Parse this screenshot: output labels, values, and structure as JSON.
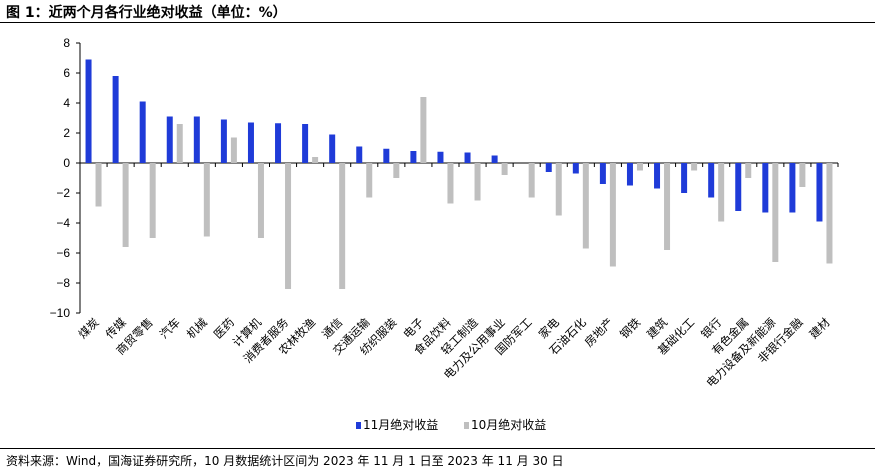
{
  "figure": {
    "title": "图 1：近两个月各行业绝对收益（单位：%）",
    "source": "资料来源：Wind，国海证券研究所，10 月数据统计区间为 2023 年 11 月 1 日至 2023 年 11 月 30 日"
  },
  "chart_data": {
    "type": "bar",
    "title": "",
    "xlabel": "",
    "ylabel": "",
    "ylim": [
      -10,
      8
    ],
    "yticks": [
      -10,
      -8,
      -6,
      -4,
      -2,
      0,
      2,
      4,
      6,
      8
    ],
    "grid": false,
    "legend_position": "bottom",
    "categories": [
      "煤炭",
      "传媒",
      "商贸零售",
      "汽车",
      "机械",
      "医药",
      "计算机",
      "消费者服务",
      "农林牧渔",
      "通信",
      "交通运输",
      "纺织服装",
      "电子",
      "食品饮料",
      "轻工制造",
      "电力及公用事业",
      "国防军工",
      "家电",
      "石油石化",
      "房地产",
      "钢铁",
      "建筑",
      "基础化工",
      "银行",
      "有色金属",
      "电力设备及新能源",
      "非银行金融",
      "建材"
    ],
    "series": [
      {
        "name": "11月绝对收益",
        "color": "#1f3bd8",
        "values": [
          6.9,
          5.8,
          4.1,
          3.1,
          3.1,
          2.9,
          2.7,
          2.65,
          2.6,
          1.9,
          1.1,
          0.95,
          0.8,
          0.75,
          0.7,
          0.5,
          0.0,
          -0.6,
          -0.7,
          -1.4,
          -1.5,
          -1.7,
          -2.0,
          -2.3,
          -3.2,
          -3.3,
          -3.3,
          -3.9
        ]
      },
      {
        "name": "10月绝对收益",
        "color": "#bfbfbf",
        "values": [
          -2.9,
          -5.6,
          -5.0,
          2.6,
          -4.9,
          1.7,
          -5.0,
          -8.4,
          0.4,
          -8.4,
          -2.3,
          -1.0,
          4.4,
          -2.7,
          -2.5,
          -0.8,
          -2.3,
          -3.5,
          -5.7,
          -6.9,
          -0.5,
          -5.8,
          -0.5,
          -3.9,
          -1.0,
          -6.6,
          -1.6,
          -6.7
        ]
      }
    ]
  }
}
